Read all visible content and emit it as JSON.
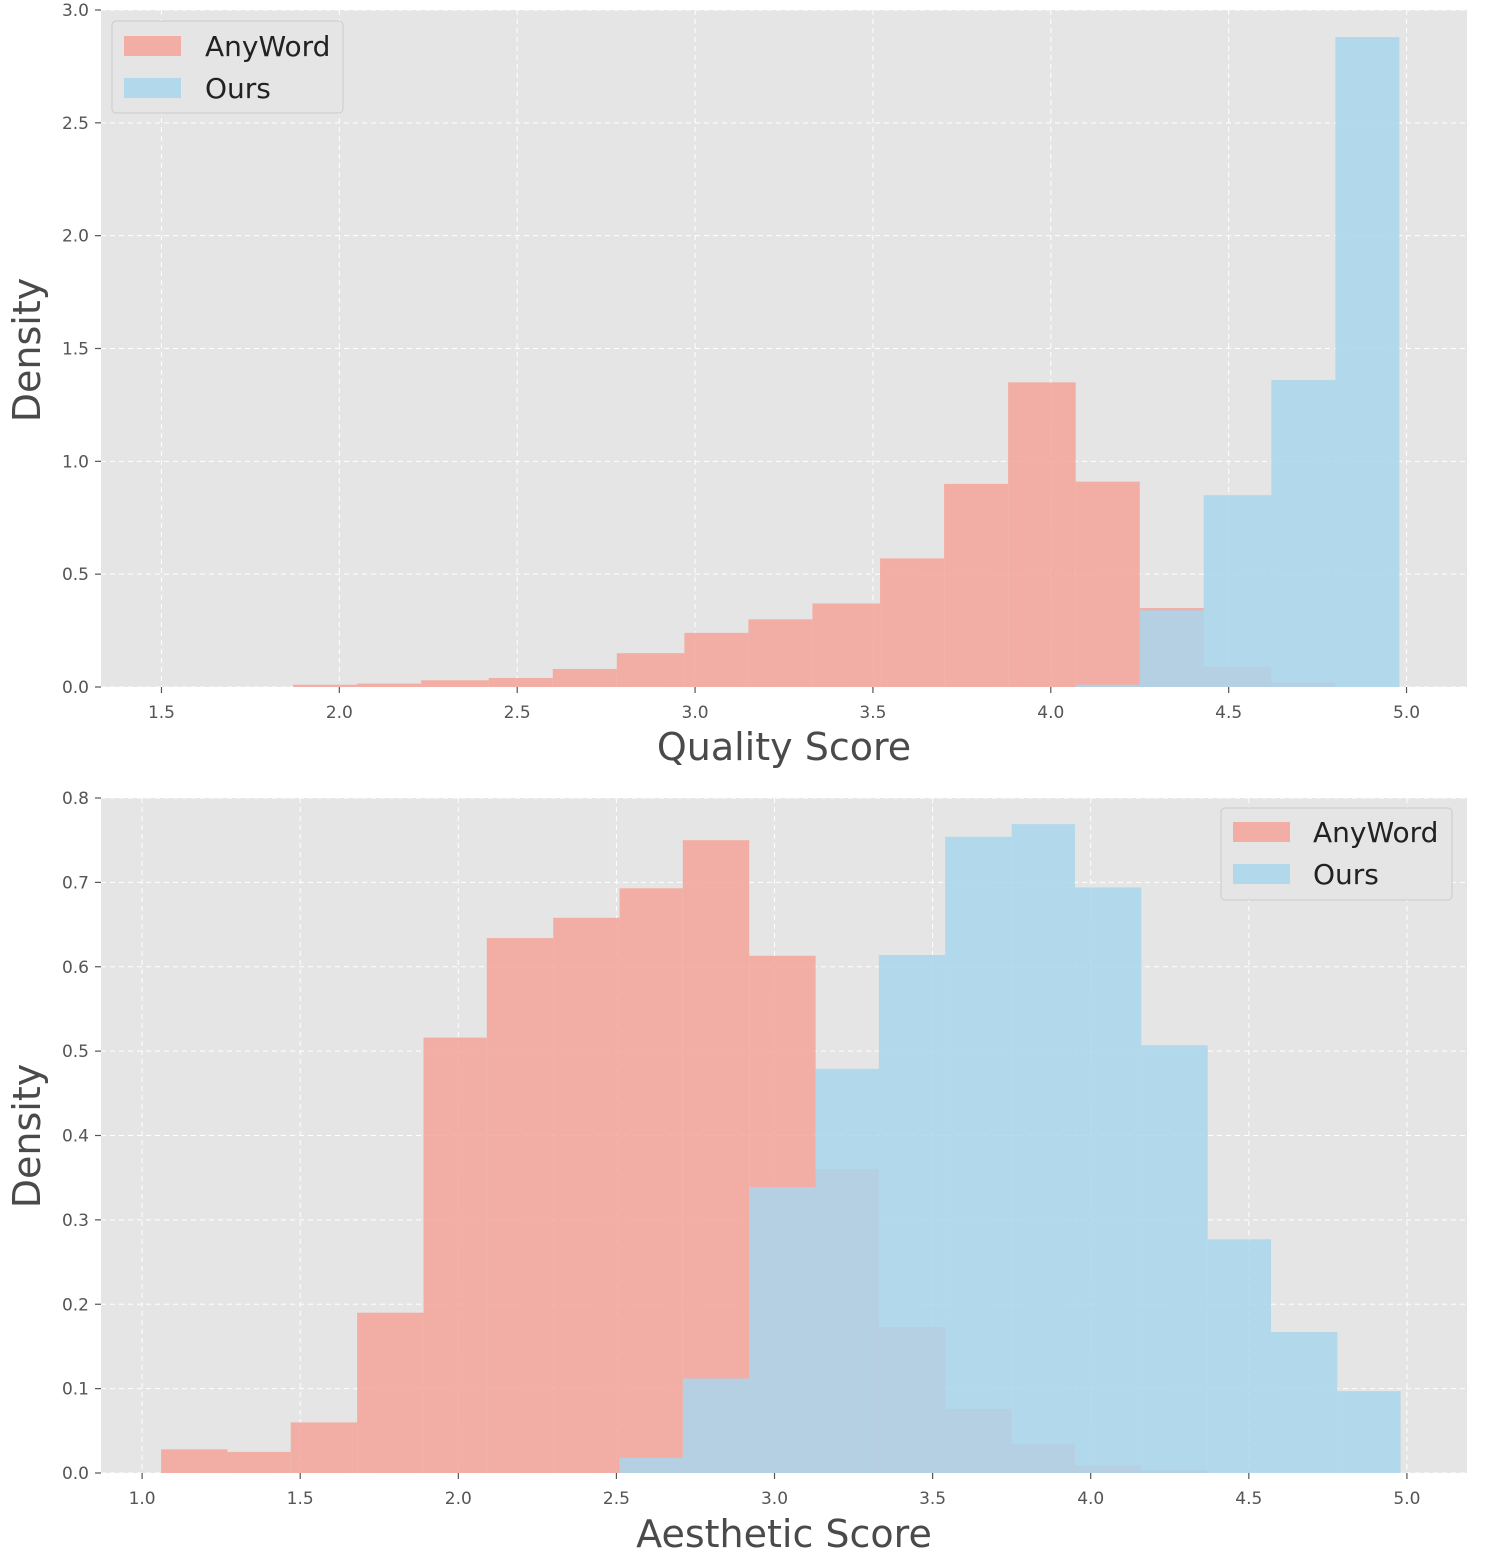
{
  "chart_data": [
    {
      "type": "histogram",
      "xlabel": "Quality Score",
      "ylabel": "Density",
      "xlim": [
        1.33,
        5.17
      ],
      "ylim": [
        0,
        3.0
      ],
      "xticks": [
        "1.5",
        "2.0",
        "2.5",
        "3.0",
        "3.5",
        "4.0",
        "4.5",
        "5.0"
      ],
      "yticks": [
        "0.0",
        "0.5",
        "1.0",
        "1.5",
        "2.0",
        "2.5",
        "3.0"
      ],
      "grid": true,
      "legend_position": "top-left",
      "series": [
        {
          "name": "AnyWord",
          "color": "#f4a49a",
          "bins": [
            {
              "x0": 1.87,
              "x1": 2.05,
              "y": 0.01
            },
            {
              "x0": 2.05,
              "x1": 2.23,
              "y": 0.015
            },
            {
              "x0": 2.23,
              "x1": 2.42,
              "y": 0.03
            },
            {
              "x0": 2.42,
              "x1": 2.6,
              "y": 0.04
            },
            {
              "x0": 2.6,
              "x1": 2.78,
              "y": 0.08
            },
            {
              "x0": 2.78,
              "x1": 2.97,
              "y": 0.15
            },
            {
              "x0": 2.97,
              "x1": 3.15,
              "y": 0.24
            },
            {
              "x0": 3.15,
              "x1": 3.33,
              "y": 0.3
            },
            {
              "x0": 3.33,
              "x1": 3.52,
              "y": 0.37
            },
            {
              "x0": 3.52,
              "x1": 3.7,
              "y": 0.57
            },
            {
              "x0": 3.7,
              "x1": 3.88,
              "y": 0.9
            },
            {
              "x0": 3.88,
              "x1": 4.07,
              "y": 1.35
            },
            {
              "x0": 4.07,
              "x1": 4.25,
              "y": 0.91
            },
            {
              "x0": 4.25,
              "x1": 4.43,
              "y": 0.35
            },
            {
              "x0": 4.43,
              "x1": 4.62,
              "y": 0.09
            },
            {
              "x0": 4.62,
              "x1": 4.8,
              "y": 0.02
            }
          ]
        },
        {
          "name": "Ours",
          "color": "#a9d6ec",
          "bins": [
            {
              "x0": 4.07,
              "x1": 4.25,
              "y": 0.01
            },
            {
              "x0": 4.25,
              "x1": 4.43,
              "y": 0.34
            },
            {
              "x0": 4.43,
              "x1": 4.62,
              "y": 0.85
            },
            {
              "x0": 4.62,
              "x1": 4.8,
              "y": 1.36
            },
            {
              "x0": 4.8,
              "x1": 4.98,
              "y": 2.88
            }
          ]
        }
      ]
    },
    {
      "type": "histogram",
      "xlabel": "Aesthetic Score",
      "ylabel": "Density",
      "xlim": [
        0.87,
        5.19
      ],
      "ylim": [
        0,
        0.8
      ],
      "xticks": [
        "1.0",
        "1.5",
        "2.0",
        "2.5",
        "3.0",
        "3.5",
        "4.0",
        "4.5",
        "5.0"
      ],
      "yticks": [
        "0.0",
        "0.1",
        "0.2",
        "0.3",
        "0.4",
        "0.5",
        "0.6",
        "0.7",
        "0.8"
      ],
      "grid": true,
      "legend_position": "top-right",
      "series": [
        {
          "name": "AnyWord",
          "color": "#f4a49a",
          "bins": [
            {
              "x0": 1.06,
              "x1": 1.27,
              "y": 0.028
            },
            {
              "x0": 1.27,
              "x1": 1.47,
              "y": 0.025
            },
            {
              "x0": 1.47,
              "x1": 1.68,
              "y": 0.06
            },
            {
              "x0": 1.68,
              "x1": 1.89,
              "y": 0.19
            },
            {
              "x0": 1.89,
              "x1": 2.09,
              "y": 0.516
            },
            {
              "x0": 2.09,
              "x1": 2.3,
              "y": 0.634
            },
            {
              "x0": 2.3,
              "x1": 2.51,
              "y": 0.658
            },
            {
              "x0": 2.51,
              "x1": 2.71,
              "y": 0.693
            },
            {
              "x0": 2.71,
              "x1": 2.92,
              "y": 0.75
            },
            {
              "x0": 2.92,
              "x1": 3.13,
              "y": 0.613
            },
            {
              "x0": 3.13,
              "x1": 3.33,
              "y": 0.36
            },
            {
              "x0": 3.33,
              "x1": 3.54,
              "y": 0.173
            },
            {
              "x0": 3.54,
              "x1": 3.75,
              "y": 0.076
            },
            {
              "x0": 3.75,
              "x1": 3.95,
              "y": 0.034
            },
            {
              "x0": 3.95,
              "x1": 4.16,
              "y": 0.009
            },
            {
              "x0": 4.16,
              "x1": 4.37,
              "y": 0.003
            }
          ]
        },
        {
          "name": "Ours",
          "color": "#a9d6ec",
          "bins": [
            {
              "x0": 2.51,
              "x1": 2.71,
              "y": 0.018
            },
            {
              "x0": 2.71,
              "x1": 2.92,
              "y": 0.112
            },
            {
              "x0": 2.92,
              "x1": 3.13,
              "y": 0.339
            },
            {
              "x0": 3.13,
              "x1": 3.33,
              "y": 0.479
            },
            {
              "x0": 3.33,
              "x1": 3.54,
              "y": 0.614
            },
            {
              "x0": 3.54,
              "x1": 3.75,
              "y": 0.754
            },
            {
              "x0": 3.75,
              "x1": 3.95,
              "y": 0.769
            },
            {
              "x0": 3.95,
              "x1": 4.16,
              "y": 0.694
            },
            {
              "x0": 4.16,
              "x1": 4.37,
              "y": 0.507
            },
            {
              "x0": 4.37,
              "x1": 4.57,
              "y": 0.277
            },
            {
              "x0": 4.57,
              "x1": 4.78,
              "y": 0.167
            },
            {
              "x0": 4.78,
              "x1": 4.98,
              "y": 0.097
            }
          ]
        }
      ]
    }
  ]
}
